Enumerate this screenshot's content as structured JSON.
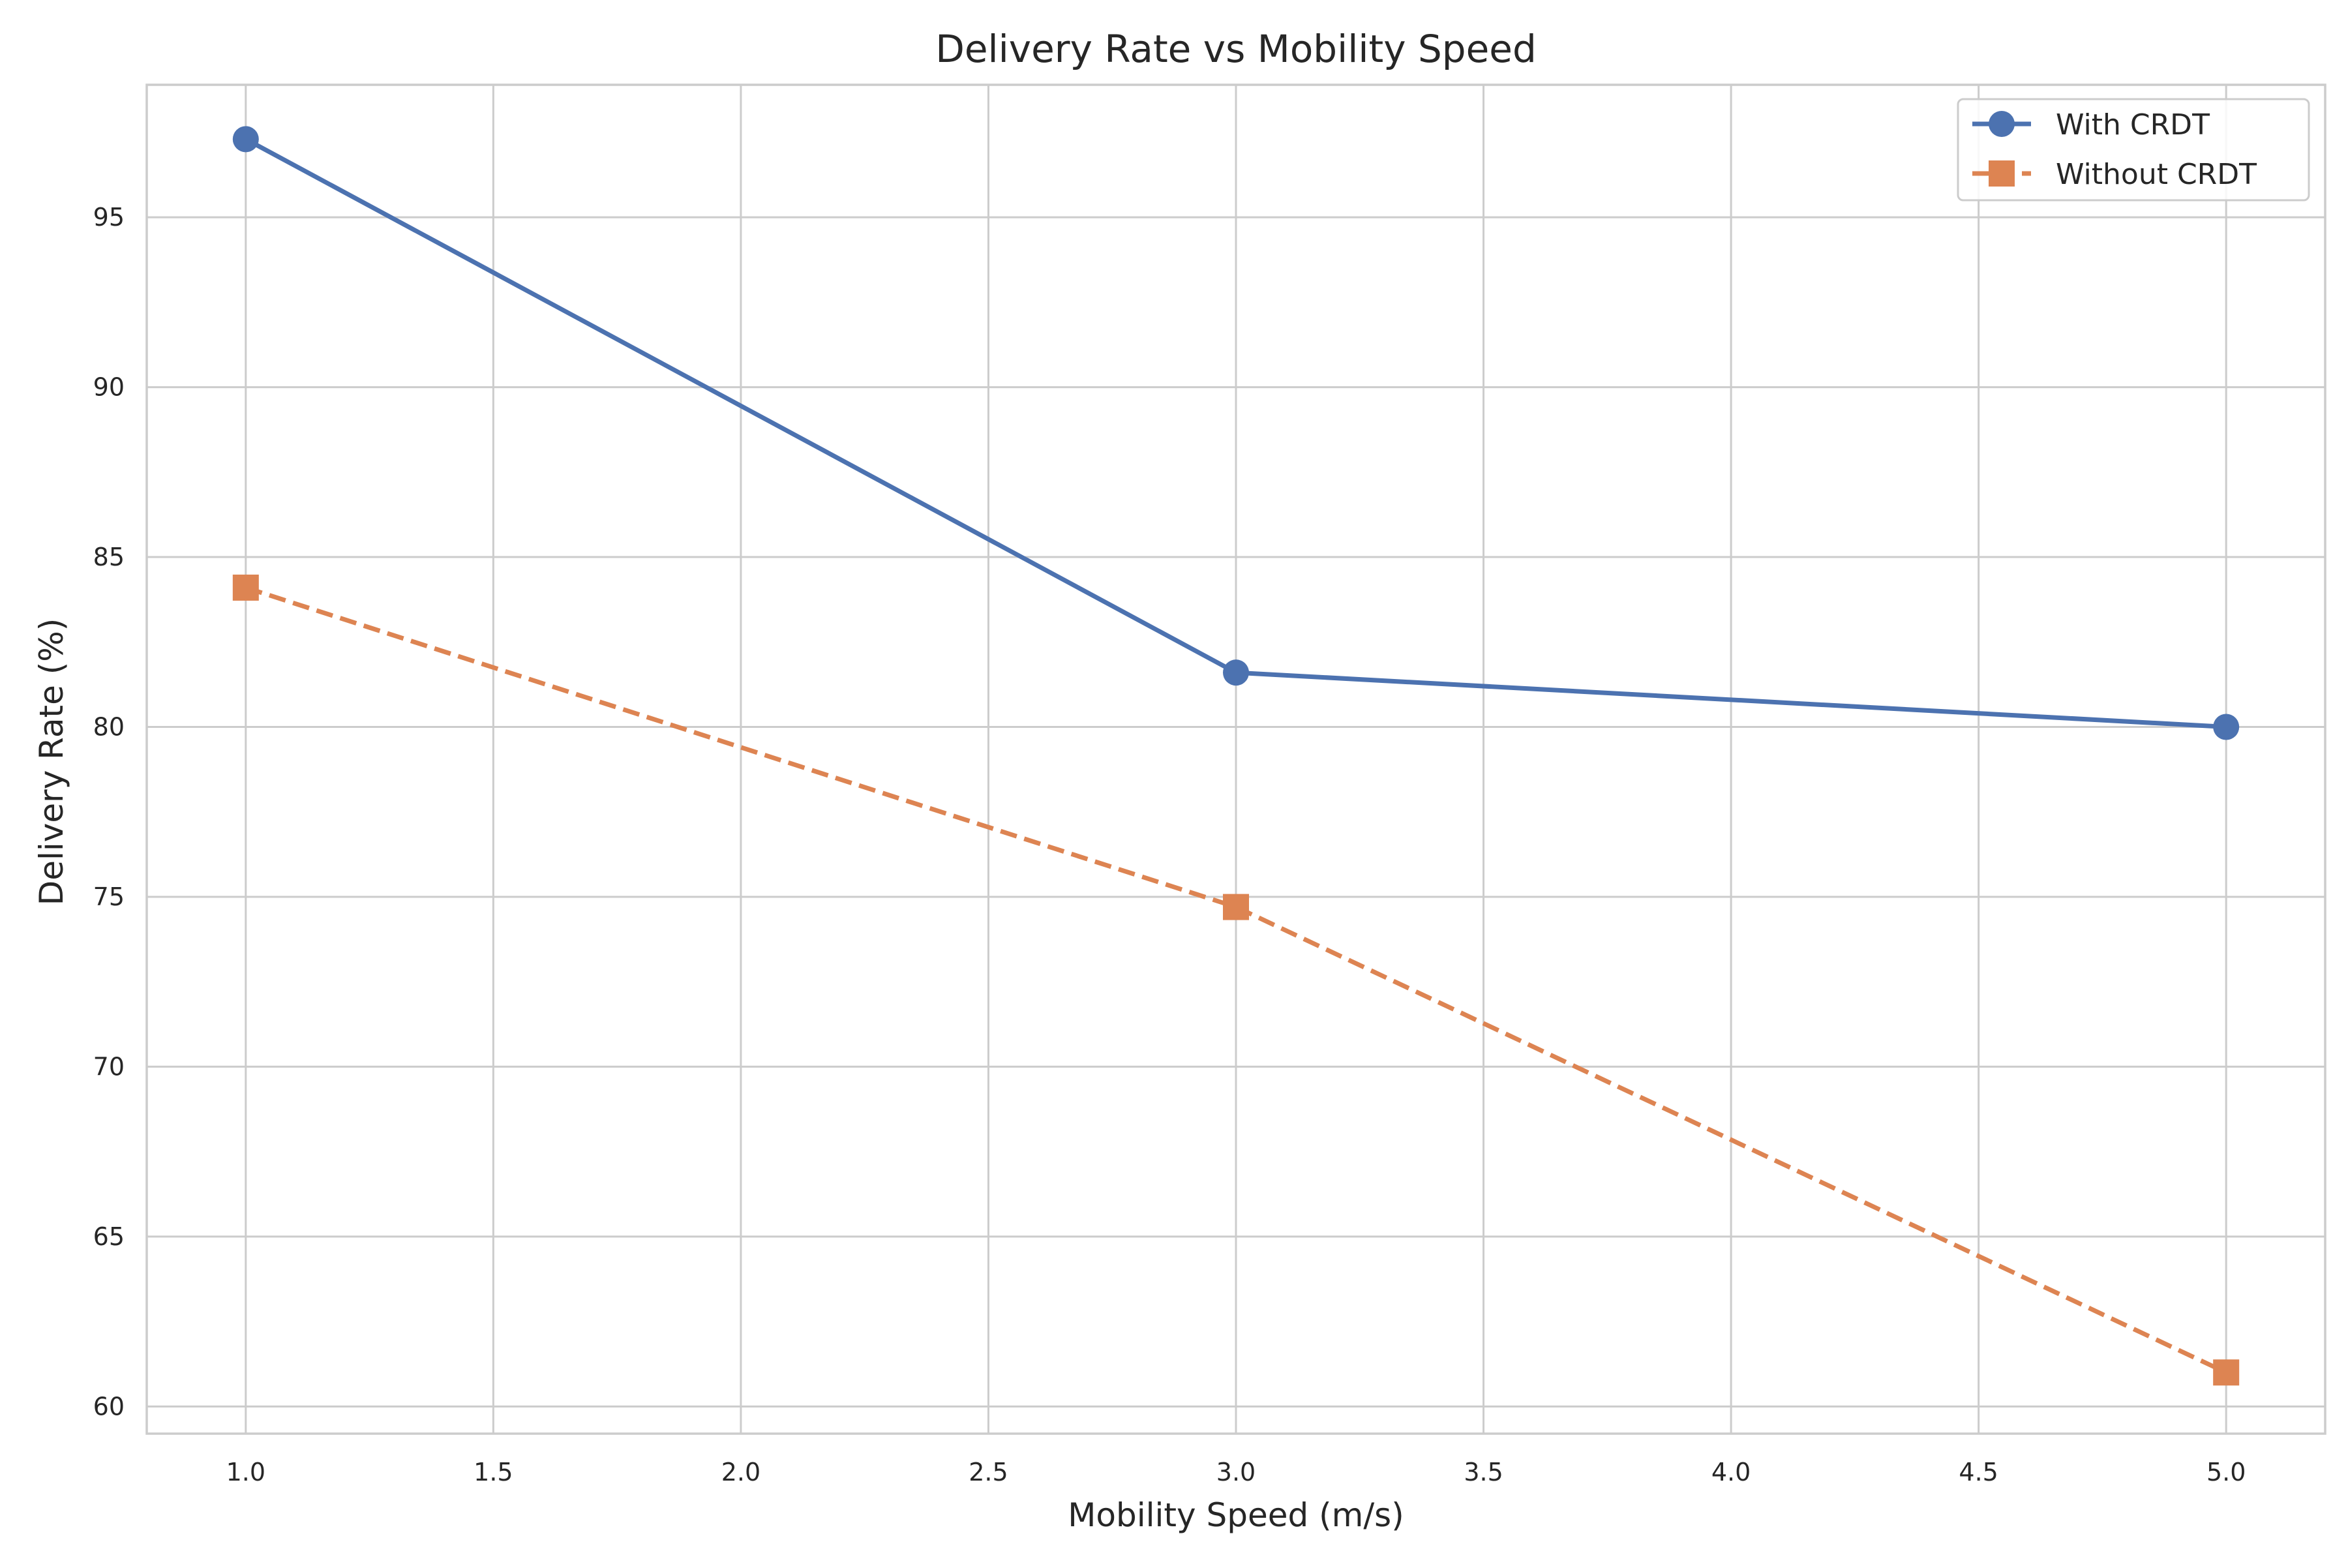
{
  "chart_data": {
    "type": "line",
    "title": "Delivery Rate vs Mobility Speed",
    "xlabel": "Mobility Speed (m/s)",
    "ylabel": "Delivery Rate (%)",
    "xlim": [
      0.8,
      5.2
    ],
    "ylim": [
      59.2,
      98.9
    ],
    "xticks": [
      1.0,
      1.5,
      2.0,
      2.5,
      3.0,
      3.5,
      4.0,
      4.5,
      5.0
    ],
    "xtick_labels": [
      "1.0",
      "1.5",
      "2.0",
      "2.5",
      "3.0",
      "3.5",
      "4.0",
      "4.5",
      "5.0"
    ],
    "yticks": [
      60,
      65,
      70,
      75,
      80,
      85,
      90,
      95
    ],
    "ytick_labels": [
      "60",
      "65",
      "70",
      "75",
      "80",
      "85",
      "90",
      "95"
    ],
    "grid": true,
    "legend_position": "top-right",
    "x": [
      1.0,
      3.0,
      5.0
    ],
    "series": [
      {
        "name": "With CRDT",
        "values": [
          97.3,
          81.6,
          80.0
        ],
        "color": "#4c72b0",
        "linestyle": "solid",
        "marker": "circle"
      },
      {
        "name": "Without CRDT",
        "values": [
          84.1,
          74.7,
          61.0
        ],
        "color": "#dd8452",
        "linestyle": "dashed",
        "marker": "square"
      }
    ]
  }
}
